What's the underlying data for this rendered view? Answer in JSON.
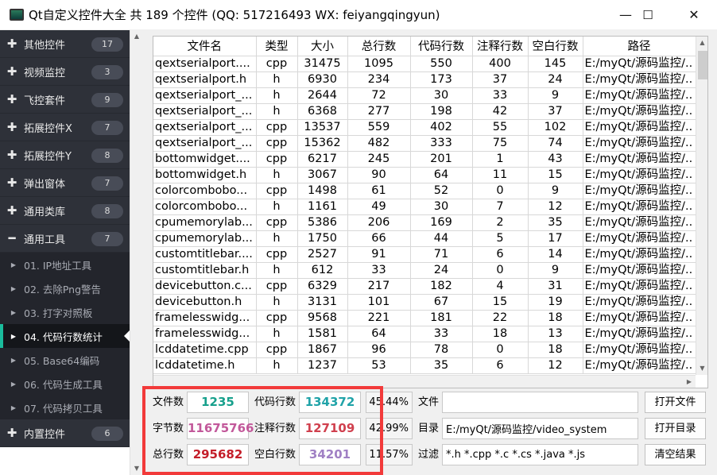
{
  "window": {
    "title": "Qt自定义控件大全 共 189 个控件 (QQ: 517216493 WX: feiyangqingyun)",
    "minimize": "—",
    "maximize": "☐",
    "close": "✕"
  },
  "sidebar": {
    "groups_top": [
      {
        "label": "其他控件",
        "count": "17",
        "icon": "plus-icon"
      },
      {
        "label": "视频监控",
        "count": "3",
        "icon": "plus-icon"
      },
      {
        "label": "飞控套件",
        "count": "9",
        "icon": "plus-icon"
      },
      {
        "label": "拓展控件X",
        "count": "7",
        "icon": "plus-icon"
      },
      {
        "label": "拓展控件Y",
        "count": "8",
        "icon": "plus-icon"
      },
      {
        "label": "弹出窗体",
        "count": "7",
        "icon": "plus-icon"
      },
      {
        "label": "通用类库",
        "count": "8",
        "icon": "plus-icon"
      },
      {
        "label": "通用工具",
        "count": "7",
        "icon": "minus-icon"
      }
    ],
    "subitems": [
      "01. IP地址工具",
      "02. 去除Png警告",
      "03. 打字对照板",
      "04. 代码行数统计",
      "05. Base64编码",
      "06. 代码生成工具",
      "07. 代码拷贝工具"
    ],
    "active_subitem": "04. 代码行数统计",
    "groups_bottom": [
      {
        "label": "内置控件",
        "count": "6",
        "icon": "plus-icon"
      }
    ],
    "accent": "#1abc9c"
  },
  "table": {
    "columns": [
      "文件名",
      "类型",
      "大小",
      "总行数",
      "代码行数",
      "注释行数",
      "空白行数",
      "路径"
    ],
    "rows": [
      [
        "qextserialport....",
        "cpp",
        "31475",
        "1095",
        "550",
        "400",
        "145",
        "E:/myQt/源码监控/.."
      ],
      [
        "qextserialport.h",
        "h",
        "6930",
        "234",
        "173",
        "37",
        "24",
        "E:/myQt/源码监控/.."
      ],
      [
        "qextserialport_...",
        "h",
        "2644",
        "72",
        "30",
        "33",
        "9",
        "E:/myQt/源码监控/.."
      ],
      [
        "qextserialport_...",
        "h",
        "6368",
        "277",
        "198",
        "42",
        "37",
        "E:/myQt/源码监控/.."
      ],
      [
        "qextserialport_...",
        "cpp",
        "13537",
        "559",
        "402",
        "55",
        "102",
        "E:/myQt/源码监控/.."
      ],
      [
        "qextserialport_...",
        "cpp",
        "15362",
        "482",
        "333",
        "75",
        "74",
        "E:/myQt/源码监控/.."
      ],
      [
        "bottomwidget....",
        "cpp",
        "6217",
        "245",
        "201",
        "1",
        "43",
        "E:/myQt/源码监控/.."
      ],
      [
        "bottomwidget.h",
        "h",
        "3067",
        "90",
        "64",
        "11",
        "15",
        "E:/myQt/源码监控/.."
      ],
      [
        "colorcombobo...",
        "cpp",
        "1498",
        "61",
        "52",
        "0",
        "9",
        "E:/myQt/源码监控/.."
      ],
      [
        "colorcombobo...",
        "h",
        "1161",
        "49",
        "30",
        "7",
        "12",
        "E:/myQt/源码监控/.."
      ],
      [
        "cpumemorylab...",
        "cpp",
        "5386",
        "206",
        "169",
        "2",
        "35",
        "E:/myQt/源码监控/.."
      ],
      [
        "cpumemorylab...",
        "h",
        "1750",
        "66",
        "44",
        "5",
        "17",
        "E:/myQt/源码监控/.."
      ],
      [
        "customtitlebar....",
        "cpp",
        "2527",
        "91",
        "71",
        "6",
        "14",
        "E:/myQt/源码监控/.."
      ],
      [
        "customtitlebar.h",
        "h",
        "612",
        "33",
        "24",
        "0",
        "9",
        "E:/myQt/源码监控/.."
      ],
      [
        "devicebutton.c...",
        "cpp",
        "6329",
        "217",
        "182",
        "4",
        "31",
        "E:/myQt/源码监控/.."
      ],
      [
        "devicebutton.h",
        "h",
        "3131",
        "101",
        "67",
        "15",
        "19",
        "E:/myQt/源码监控/.."
      ],
      [
        "framelesswidg...",
        "cpp",
        "9568",
        "221",
        "181",
        "22",
        "18",
        "E:/myQt/源码监控/.."
      ],
      [
        "framelesswidg...",
        "h",
        "1581",
        "64",
        "33",
        "18",
        "13",
        "E:/myQt/源码监控/.."
      ],
      [
        "lcddatetime.cpp",
        "cpp",
        "1867",
        "96",
        "78",
        "0",
        "18",
        "E:/myQt/源码监控/.."
      ],
      [
        "lcddatetime.h",
        "h",
        "1237",
        "53",
        "35",
        "6",
        "12",
        "E:/myQt/源码监控/.."
      ]
    ]
  },
  "stats": {
    "file_count": {
      "label": "文件数",
      "value": "1235",
      "color": "#17a08c"
    },
    "byte_count": {
      "label": "字节数",
      "value": "11675766",
      "color": "#c2589a"
    },
    "total_lines": {
      "label": "总行数",
      "value": "295682",
      "color": "#c41e2a"
    },
    "code_lines": {
      "label": "代码行数",
      "value": "134372",
      "color": "#20a3a8",
      "percent": "45.44%"
    },
    "comment_lines": {
      "label": "注释行数",
      "value": "127109",
      "color": "#d0404e",
      "percent": "42.99%"
    },
    "blank_lines": {
      "label": "空白行数",
      "value": "34201",
      "color": "#a080c4",
      "percent": "11.57%"
    }
  },
  "controls": {
    "file": {
      "label": "文件",
      "value": "",
      "button": "打开文件"
    },
    "dir": {
      "label": "目录",
      "value": "E:/myQt/源码监控/video_system",
      "button": "打开目录"
    },
    "filter": {
      "label": "过滤",
      "value": "*.h *.cpp *.c *.cs *.java *.js",
      "button": "清空结果"
    }
  },
  "highlight_color": "#f23a3a"
}
